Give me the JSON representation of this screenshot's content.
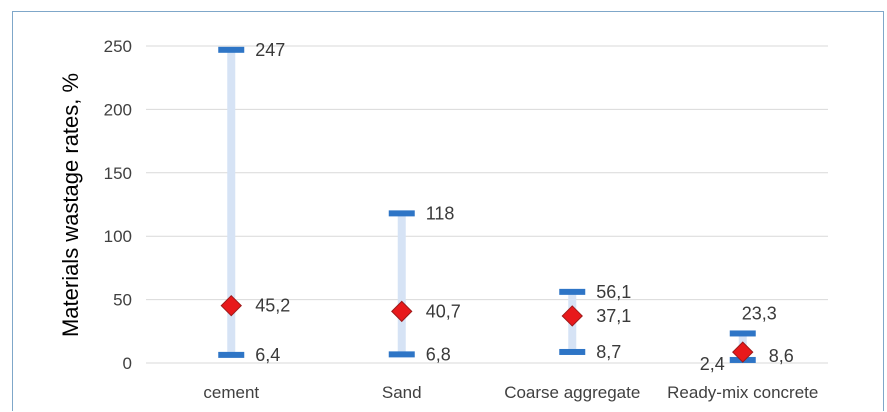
{
  "chart_data": {
    "type": "range",
    "categories": [
      "cement",
      "Sand",
      "Coarse aggregate",
      "Ready-mix concrete"
    ],
    "series": [
      {
        "values": [
          247,
          118,
          56.1,
          23.3
        ]
      },
      {
        "values": [
          6.4,
          6.8,
          8.7,
          2.4
        ]
      },
      {
        "values": [
          45.2,
          40.7,
          37.1,
          8.6
        ]
      }
    ],
    "data_labels": {
      "max": [
        "247",
        "118",
        "56,1",
        "23,3"
      ],
      "min": [
        "6,4",
        "6,8",
        "8,7",
        "2,4"
      ],
      "mean": [
        "45,2",
        "40,7",
        "37,1",
        "8,6"
      ]
    },
    "yticks": [
      "0",
      "50",
      "100",
      "150",
      "200",
      "250"
    ],
    "ylabel": "Materials wastage rates, %",
    "ylim": [
      0,
      250
    ],
    "grid": true,
    "colors": {
      "range_bar": "#d6e3f5",
      "cap": "#2e75c6",
      "marker_fill": "#e8191b",
      "marker_stroke": "#9c1a1a",
      "grid": "#d9d9d9",
      "frame": "#7fa7c9"
    }
  }
}
